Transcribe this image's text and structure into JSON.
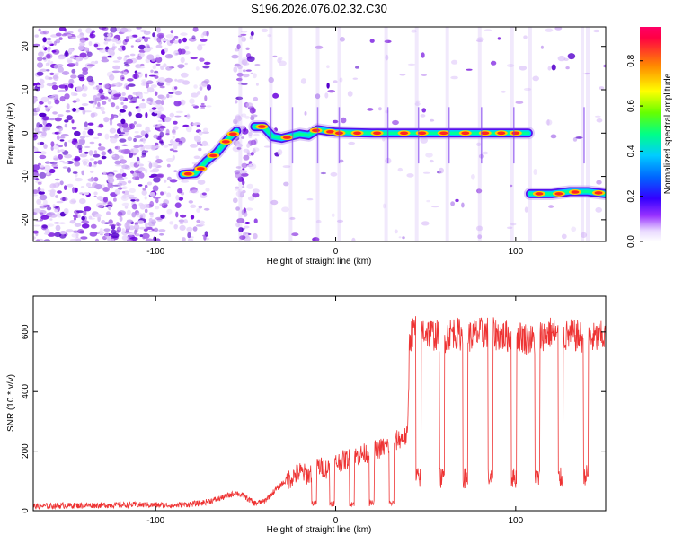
{
  "title": "S196.2026.076.02.32.C30",
  "chart_data": [
    {
      "type": "heatmap",
      "name": "spectrogram",
      "xlabel": "Height of straight line (km)",
      "ylabel": "Frequency (Hz)",
      "xlim": [
        -168,
        150
      ],
      "ylim": [
        -25,
        24.5
      ],
      "xticks": [
        -100,
        0,
        100
      ],
      "yticks": [
        -20,
        -10,
        0,
        10,
        20
      ],
      "colorbar": {
        "label": "Normalized spectral amplitude",
        "range": [
          0,
          0.95
        ],
        "ticks": [
          0.0,
          0.2,
          0.4,
          0.6,
          0.8
        ]
      },
      "ridge": [
        [
          -85,
          -9.5
        ],
        [
          -78,
          -9.3
        ],
        [
          -72,
          -6.5
        ],
        [
          -66,
          -4.5
        ],
        [
          -60,
          -1.5
        ],
        [
          -55,
          0.5
        ],
        [
          -45,
          1.5
        ],
        [
          -40,
          1.5
        ],
        [
          -35,
          -0.8
        ],
        [
          -30,
          -1.2
        ],
        [
          -25,
          -0.7
        ],
        [
          -20,
          -0.2
        ],
        [
          -15,
          -0.5
        ],
        [
          -10,
          0.8
        ],
        [
          -5,
          0.5
        ],
        [
          0,
          0.2
        ],
        [
          20,
          0.0
        ],
        [
          40,
          0.0
        ],
        [
          60,
          0.0
        ],
        [
          80,
          0.0
        ],
        [
          95,
          0.0
        ],
        [
          107,
          0.0
        ],
        [
          108,
          -14.0
        ],
        [
          120,
          -14.0
        ],
        [
          130,
          -13.5
        ],
        [
          140,
          -13.5
        ],
        [
          150,
          -14.0
        ]
      ]
    },
    {
      "type": "line",
      "name": "snr",
      "xlabel": "Height of straight line (km)",
      "ylabel": "SNR (10 * v/v)",
      "xlim": [
        -168,
        150
      ],
      "ylim": [
        0,
        720
      ],
      "xticks": [
        -100,
        0,
        100
      ],
      "yticks": [
        0,
        200,
        400,
        600
      ],
      "color": "#ee3333",
      "x": [
        -168,
        -140,
        -110,
        -90,
        -75,
        -65,
        -55,
        -50,
        -45,
        -40,
        -35,
        -30,
        -25,
        -20,
        -15,
        -10,
        -5,
        0,
        5,
        10,
        15,
        20,
        25,
        30,
        35,
        40,
        41,
        45,
        50,
        55,
        60,
        65,
        70,
        75,
        80,
        85,
        90,
        95,
        100,
        105,
        110,
        115,
        120,
        125,
        130,
        135,
        140,
        145,
        150
      ],
      "y": [
        15,
        18,
        20,
        18,
        25,
        40,
        60,
        45,
        25,
        30,
        60,
        90,
        110,
        130,
        120,
        150,
        140,
        160,
        170,
        180,
        190,
        200,
        210,
        220,
        240,
        250,
        580,
        620,
        600,
        590,
        580,
        600,
        590,
        585,
        595,
        600,
        590,
        585,
        590,
        580,
        570,
        590,
        600,
        580,
        590,
        585,
        575,
        580,
        585
      ]
    }
  ]
}
